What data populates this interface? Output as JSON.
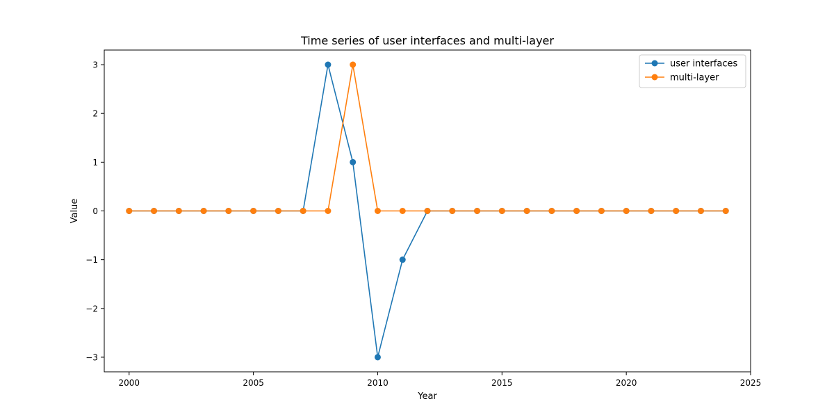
{
  "chart_data": {
    "type": "line",
    "title": "Time series of user interfaces and multi-layer",
    "xlabel": "Year",
    "ylabel": "Value",
    "xlim": [
      1999,
      2025
    ],
    "ylim": [
      -3.3,
      3.3
    ],
    "xticks": [
      2000,
      2005,
      2010,
      2015,
      2020,
      2025
    ],
    "yticks": [
      -3,
      -2,
      -1,
      0,
      1,
      2,
      3
    ],
    "ytick_labels": [
      "−3",
      "−2",
      "−1",
      "0",
      "1",
      "2",
      "3"
    ],
    "x": [
      2000,
      2001,
      2002,
      2003,
      2004,
      2005,
      2006,
      2007,
      2008,
      2009,
      2010,
      2011,
      2012,
      2013,
      2014,
      2015,
      2016,
      2017,
      2018,
      2019,
      2020,
      2021,
      2022,
      2023,
      2024
    ],
    "series": [
      {
        "name": "user interfaces",
        "color": "#1f77b4",
        "values": [
          0,
          0,
          0,
          0,
          0,
          0,
          0,
          0,
          3,
          1,
          -3,
          -1,
          0,
          0,
          0,
          0,
          0,
          0,
          0,
          0,
          0,
          0,
          0,
          0,
          0
        ]
      },
      {
        "name": "multi-layer",
        "color": "#ff7f0e",
        "values": [
          0,
          0,
          0,
          0,
          0,
          0,
          0,
          0,
          0,
          3,
          0,
          0,
          0,
          0,
          0,
          0,
          0,
          0,
          0,
          0,
          0,
          0,
          0,
          0,
          0
        ]
      }
    ],
    "grid": false,
    "legend_position": "top-right"
  }
}
